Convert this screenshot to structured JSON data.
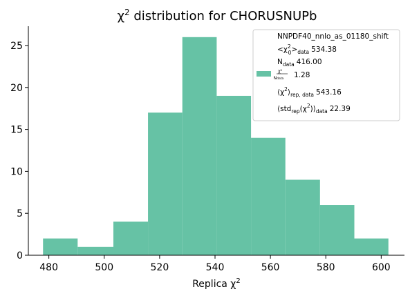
{
  "chart_data": {
    "type": "bar",
    "title_base": "χ",
    "title_sup": "2",
    "title_rest": " distribution for CHORUSNUPb",
    "xlabel_base": "Replica χ",
    "xlabel_sup": "2",
    "xlim": [
      472.6,
      608.4
    ],
    "ylim": [
      0,
      27.3
    ],
    "xticks": [
      480,
      500,
      520,
      540,
      560,
      580,
      600
    ],
    "yticks": [
      0,
      5,
      10,
      15,
      20,
      25
    ],
    "bin_edges": [
      477.9,
      490.4,
      503.3,
      515.8,
      528.2,
      540.6,
      553.0,
      565.4,
      577.9,
      590.3,
      602.6
    ],
    "counts": [
      2,
      1,
      4,
      17,
      26,
      19,
      14,
      9,
      6,
      2
    ],
    "color": "#66c2a5",
    "grid": false,
    "legend": {
      "position": "top-right",
      "series_name": "NNPDF40_nnlo_as_01180_shift",
      "chi2_label": "<χ",
      "chi2_sup": "2",
      "chi2_sub_0": "0",
      "chi2_close": ">",
      "chi2_sub": "data",
      "chi2_value": "534.38",
      "ndata_label": "N",
      "ndata_sub": "data",
      "ndata_value": "416.00",
      "ratio_num": "χ²",
      "ratio_den": "N",
      "ratio_den_sub": "data",
      "ratio_value": "1.28",
      "rep_label": "⟨χ",
      "rep_sup": "2",
      "rep_close": "⟩",
      "rep_sub": "rep, data",
      "rep_value": "543.16",
      "std_label_open": "⟨std",
      "std_sub_rep": "rep",
      "std_inner": "(χ",
      "std_sup": "2",
      "std_close": ")⟩",
      "std_sub_data": "data",
      "std_value": "22.39"
    }
  }
}
